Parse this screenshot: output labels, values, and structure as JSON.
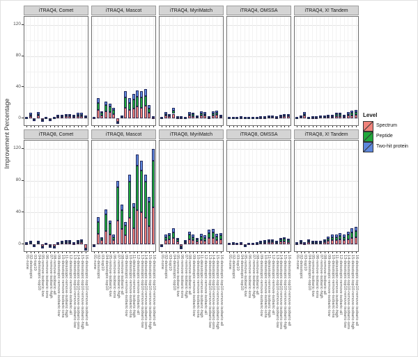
{
  "chart_data": {
    "type": "bar",
    "stacked": true,
    "ylabel": "Improvement Percentage",
    "yticks": [
      0,
      40,
      80,
      120
    ],
    "ylim": [
      -10.5,
      130.5
    ],
    "grid": true,
    "facet_rows": [
      "iTRAQ4",
      "iTRAQ8"
    ],
    "facet_cols": [
      "Comet",
      "Mascot",
      "MyriMatch",
      "OMSSA",
      "X! Tandem"
    ],
    "legend": {
      "title": "Level",
      "position": "right",
      "items": [
        {
          "label": "Spectrum",
          "color": "#F0837B"
        },
        {
          "label": "Peptide",
          "color": "#21A83C"
        },
        {
          "label": "Two-hit protein",
          "color": "#5D87DC"
        }
      ]
    },
    "categories": [
      "01-none",
      "02-deisotopic",
      "03-top10",
      "04-deisotopic-top10",
      "05-remove-isobaric-low",
      "06-remove-isobaric-ions",
      "07-remove-isobaric-high",
      "08-remove-isobaric-all",
      "09-deisotopic-remove-isobaric-low",
      "10-deisotopic-remove-isobaric-ions",
      "11-deisotopic-remove-isobaric-high",
      "12-deisotopic-remove-isobaric-all",
      "13-deisotopic-top10-remove-isobaric-low",
      "14-deisotopic-top10-remove-isobaric-ions",
      "15-deisotopic-top10-remove-isobaric-high",
      "16-deisotopic-top10-remove-isobaric-all"
    ],
    "series_order": [
      "Spectrum",
      "Peptide",
      "Two-hit protein"
    ],
    "panels": [
      {
        "title": "iTRAQ4, Comet",
        "row": "iTRAQ4",
        "col": "Comet",
        "bars": [
          [
            0.4,
            0.3,
            0.3
          ],
          [
            3,
            2,
            2
          ],
          [
            -1,
            -0.5,
            -0.5
          ],
          [
            3.5,
            2.5,
            2
          ],
          [
            -1.5,
            -0.5,
            -1
          ],
          [
            0.4,
            0.3,
            0.3
          ],
          [
            -0.5,
            -0.2,
            -0.3
          ],
          [
            0.4,
            0.3,
            0.3
          ],
          [
            2,
            1.6,
            1.4
          ],
          [
            2,
            1.6,
            1.4
          ],
          [
            2.5,
            2,
            1.5
          ],
          [
            2.5,
            2,
            1.5
          ],
          [
            2,
            1.6,
            1.4
          ],
          [
            3,
            2,
            2
          ],
          [
            3,
            2,
            2
          ],
          [
            1.6,
            1.3,
            1.1
          ]
        ]
      },
      {
        "title": "iTRAQ4, Mascot",
        "row": "iTRAQ4",
        "col": "Mascot",
        "bars": [
          [
            1,
            0.5,
            0.5
          ],
          [
            11,
            9,
            6
          ],
          [
            4,
            3,
            2
          ],
          [
            9,
            8,
            5
          ],
          [
            8,
            7,
            4
          ],
          [
            6,
            5,
            3
          ],
          [
            -4,
            -1,
            -2
          ],
          [
            2,
            1,
            1
          ],
          [
            14,
            13,
            8
          ],
          [
            11,
            9,
            6
          ],
          [
            13,
            11,
            7
          ],
          [
            15,
            13,
            8
          ],
          [
            14,
            13,
            8
          ],
          [
            16,
            13,
            9
          ],
          [
            7,
            6,
            4
          ],
          [
            1.5,
            1,
            0.5
          ]
        ]
      },
      {
        "title": "iTRAQ4, MyriMatch",
        "row": "iTRAQ4",
        "col": "MyriMatch",
        "bars": [
          [
            0.8,
            0.6,
            0.6
          ],
          [
            3.5,
            2.5,
            2
          ],
          [
            2.5,
            2,
            1.5
          ],
          [
            6,
            4,
            4
          ],
          [
            1.2,
            1,
            0.8
          ],
          [
            1.2,
            1,
            0.8
          ],
          [
            0.8,
            0.6,
            0.6
          ],
          [
            3.5,
            2.5,
            2
          ],
          [
            3,
            2.2,
            1.8
          ],
          [
            1.6,
            1.3,
            1.1
          ],
          [
            4,
            2.8,
            2.2
          ],
          [
            3.5,
            2.5,
            2
          ],
          [
            1.2,
            1,
            0.8
          ],
          [
            4,
            2.8,
            2.2
          ],
          [
            4.5,
            3,
            2.5
          ],
          [
            2,
            1.6,
            1.4
          ]
        ]
      },
      {
        "title": "iTRAQ4, OMSSA",
        "row": "iTRAQ4",
        "col": "OMSSA",
        "bars": [
          [
            0.4,
            0.3,
            0.3
          ],
          [
            0.8,
            0.6,
            0.6
          ],
          [
            0.4,
            0.3,
            0.3
          ],
          [
            1.2,
            1,
            0.8
          ],
          [
            0.4,
            0.3,
            0.3
          ],
          [
            0.4,
            0.3,
            0.3
          ],
          [
            0.4,
            0.3,
            0.3
          ],
          [
            0.8,
            0.6,
            0.6
          ],
          [
            1.2,
            1,
            0.8
          ],
          [
            1.2,
            1,
            0.8
          ],
          [
            1.6,
            1.3,
            1.1
          ],
          [
            1.6,
            1.3,
            1.1
          ],
          [
            1.2,
            1,
            0.8
          ],
          [
            2,
            1.6,
            1.4
          ],
          [
            2.5,
            2,
            1.5
          ],
          [
            2.5,
            2,
            1.5
          ]
        ]
      },
      {
        "title": "iTRAQ4, X! Tandem",
        "row": "iTRAQ4",
        "col": "X! Tandem",
        "bars": [
          [
            0.8,
            0.6,
            0.6
          ],
          [
            1.6,
            1.3,
            1.1
          ],
          [
            3.5,
            2.5,
            2
          ],
          [
            0.8,
            0.6,
            0.6
          ],
          [
            1.2,
            1,
            0.8
          ],
          [
            1.2,
            1,
            0.8
          ],
          [
            1.6,
            1.3,
            1.1
          ],
          [
            1.6,
            1.3,
            1.1
          ],
          [
            2,
            1.6,
            1.4
          ],
          [
            2,
            1.6,
            1.4
          ],
          [
            3,
            2.2,
            1.8
          ],
          [
            3,
            2.2,
            1.8
          ],
          [
            2,
            1.6,
            1.4
          ],
          [
            3.5,
            2.5,
            2
          ],
          [
            4,
            3,
            3
          ],
          [
            4.5,
            3.5,
            3
          ]
        ]
      },
      {
        "title": "iTRAQ8, Comet",
        "row": "iTRAQ8",
        "col": "Comet",
        "bars": [
          [
            0.8,
            0.6,
            0.6
          ],
          [
            1.6,
            1.3,
            1.1
          ],
          [
            -1.2,
            -0.4,
            -0.4
          ],
          [
            1.6,
            1.3,
            1.1
          ],
          [
            -2.4,
            -0.8,
            -0.8
          ],
          [
            0.4,
            0.3,
            0.3
          ],
          [
            -1.8,
            -0.6,
            -0.6
          ],
          [
            -2.4,
            -0.8,
            -0.8
          ],
          [
            1.2,
            1,
            0.8
          ],
          [
            1.6,
            1.3,
            1.1
          ],
          [
            2,
            1.6,
            1.4
          ],
          [
            2,
            1.6,
            1.4
          ],
          [
            1.2,
            1,
            0.8
          ],
          [
            2,
            1.6,
            1.4
          ],
          [
            2.5,
            2,
            1.5
          ],
          [
            -5,
            -1,
            -1
          ]
        ]
      },
      {
        "title": "iTRAQ8, Mascot",
        "row": "iTRAQ8",
        "col": "Mascot",
        "bars": [
          [
            -0.5,
            -0.3,
            -0.2
          ],
          [
            13,
            15,
            6
          ],
          [
            5,
            2.5,
            1.5
          ],
          [
            17,
            21,
            6
          ],
          [
            12,
            14,
            4
          ],
          [
            5,
            4,
            3
          ],
          [
            30,
            42,
            8
          ],
          [
            19,
            24,
            7
          ],
          [
            11,
            13,
            4
          ],
          [
            33,
            46,
            9
          ],
          [
            20,
            26,
            6
          ],
          [
            43,
            56,
            14
          ],
          [
            40,
            53,
            12
          ],
          [
            33,
            46,
            9
          ],
          [
            23,
            30,
            7
          ],
          [
            46,
            59,
            15
          ]
        ]
      },
      {
        "title": "iTRAQ8, MyriMatch",
        "row": "iTRAQ8",
        "col": "MyriMatch",
        "bars": [
          [
            -0.5,
            -0.3,
            -0.2
          ],
          [
            5,
            4,
            3
          ],
          [
            6,
            5,
            3
          ],
          [
            8,
            7,
            5
          ],
          [
            3.5,
            2.5,
            2
          ],
          [
            -3,
            -1,
            -1
          ],
          [
            2,
            1.7,
            1.3
          ],
          [
            6.5,
            5.5,
            4
          ],
          [
            5,
            4,
            3
          ],
          [
            3.5,
            2.5,
            2
          ],
          [
            5.5,
            4.5,
            3
          ],
          [
            4.5,
            3.8,
            2.7
          ],
          [
            7.5,
            6.3,
            4.2
          ],
          [
            8,
            6.5,
            4.5
          ],
          [
            5.5,
            4.5,
            3
          ],
          [
            6,
            5,
            3
          ]
        ]
      },
      {
        "title": "iTRAQ8, OMSSA",
        "row": "iTRAQ8",
        "col": "OMSSA",
        "bars": [
          [
            0.4,
            0.3,
            0.3
          ],
          [
            0.8,
            0.6,
            0.6
          ],
          [
            0.4,
            0.3,
            0.3
          ],
          [
            1.2,
            1,
            0.8
          ],
          [
            -0.5,
            -0.3,
            -0.2
          ],
          [
            0.4,
            0.3,
            0.3
          ],
          [
            0.4,
            0.3,
            0.3
          ],
          [
            0.8,
            0.6,
            0.6
          ],
          [
            1.6,
            1.3,
            1.1
          ],
          [
            2,
            1.6,
            1.4
          ],
          [
            2.5,
            2,
            1.5
          ],
          [
            2.5,
            2,
            1.5
          ],
          [
            1.6,
            1.3,
            1.1
          ],
          [
            3.2,
            2.6,
            2.2
          ],
          [
            3.6,
            3,
            2.4
          ],
          [
            2.8,
            2.4,
            1.8
          ]
        ]
      },
      {
        "title": "iTRAQ8, X! Tandem",
        "row": "iTRAQ8",
        "col": "X! Tandem",
        "bars": [
          [
            0.8,
            0.6,
            0.6
          ],
          [
            2,
            1.6,
            1.4
          ],
          [
            1.2,
            1,
            0.8
          ],
          [
            2.5,
            2,
            1.5
          ],
          [
            1.6,
            1.3,
            1.1
          ],
          [
            1.6,
            1.3,
            1.1
          ],
          [
            1.6,
            1.3,
            1.1
          ],
          [
            2.5,
            2,
            1.5
          ],
          [
            4,
            3.3,
            2.7
          ],
          [
            5,
            4,
            3
          ],
          [
            5,
            4,
            3
          ],
          [
            6,
            4.6,
            3.4
          ],
          [
            5,
            4,
            3
          ],
          [
            6.5,
            5.5,
            4
          ],
          [
            8,
            7,
            5
          ],
          [
            9,
            7.5,
            5.5
          ]
        ]
      }
    ]
  }
}
